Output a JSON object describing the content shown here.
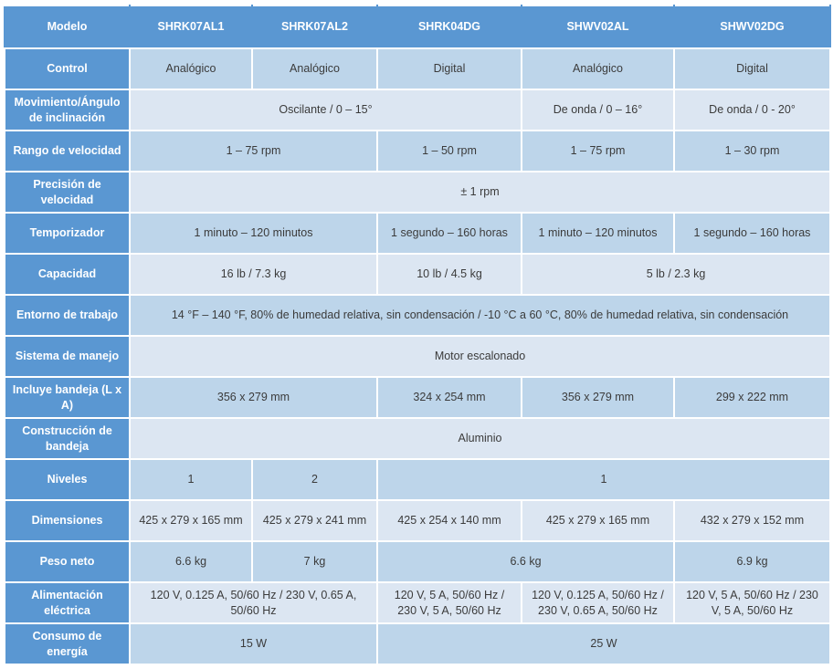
{
  "colors": {
    "header_bg": "#5a97d2",
    "row_shade_dark": "#bdd5ea",
    "row_shade_light": "#dce6f2",
    "gridline": "#ffffff",
    "header_text": "#ffffff",
    "body_text": "#3b3b3b"
  },
  "table": {
    "header": {
      "row_label": "Modelo",
      "columns": [
        "SHRK07AL1",
        "SHRK07AL2",
        "SHRK04DG",
        "SHWV02AL",
        "SHWV02DG"
      ]
    },
    "rows": [
      {
        "label": "Control",
        "shade": "dark",
        "cells": [
          {
            "text": "Analógico",
            "span": 1
          },
          {
            "text": "Analógico",
            "span": 1
          },
          {
            "text": "Digital",
            "span": 1
          },
          {
            "text": "Analógico",
            "span": 1
          },
          {
            "text": "Digital",
            "span": 1
          }
        ]
      },
      {
        "label": "Movimiento/Ángulo de inclinación",
        "shade": "light",
        "cells": [
          {
            "text": "Oscilante / 0 – 15°",
            "span": 3
          },
          {
            "text": "De onda / 0 – 16°",
            "span": 1
          },
          {
            "text": "De onda / 0 - 20°",
            "span": 1
          }
        ]
      },
      {
        "label": "Rango de velocidad",
        "shade": "dark",
        "cells": [
          {
            "text": "1 – 75 rpm",
            "span": 2
          },
          {
            "text": "1 – 50 rpm",
            "span": 1
          },
          {
            "text": "1 – 75 rpm",
            "span": 1
          },
          {
            "text": "1 – 30 rpm",
            "span": 1
          }
        ]
      },
      {
        "label": "Precisión de velocidad",
        "shade": "light",
        "cells": [
          {
            "text": "± 1 rpm",
            "span": 5
          }
        ]
      },
      {
        "label": "Temporizador",
        "shade": "dark",
        "cells": [
          {
            "text": "1 minuto – 120 minutos",
            "span": 2
          },
          {
            "text": "1 segundo – 160 horas",
            "span": 1
          },
          {
            "text": "1 minuto – 120 minutos",
            "span": 1
          },
          {
            "text": "1 segundo – 160 horas",
            "span": 1
          }
        ]
      },
      {
        "label": "Capacidad",
        "shade": "light",
        "cells": [
          {
            "text": "16 lb / 7.3 kg",
            "span": 2
          },
          {
            "text": "10 lb / 4.5 kg",
            "span": 1
          },
          {
            "text": "5 lb / 2.3 kg",
            "span": 2
          }
        ]
      },
      {
        "label": "Entorno de trabajo",
        "shade": "dark",
        "cells": [
          {
            "text": "14 °F – 140 °F, 80% de humedad relativa, sin condensación / -10 °C a 60 °C, 80% de humedad relativa, sin condensación",
            "span": 5
          }
        ]
      },
      {
        "label": "Sistema de manejo",
        "shade": "light",
        "cells": [
          {
            "text": "Motor escalonado",
            "span": 5
          }
        ]
      },
      {
        "label": "Incluye bandeja (L x A)",
        "shade": "dark",
        "cells": [
          {
            "text": "356 x 279 mm",
            "span": 2
          },
          {
            "text": "324 x 254 mm",
            "span": 1
          },
          {
            "text": "356 x 279 mm",
            "span": 1
          },
          {
            "text": "299 x 222 mm",
            "span": 1
          }
        ]
      },
      {
        "label": "Construcción de bandeja",
        "shade": "light",
        "cells": [
          {
            "text": "Aluminio",
            "span": 5
          }
        ]
      },
      {
        "label": "Niveles",
        "shade": "dark",
        "cells": [
          {
            "text": "1",
            "span": 1
          },
          {
            "text": "2",
            "span": 1
          },
          {
            "text": "1",
            "span": 3
          }
        ]
      },
      {
        "label": "Dimensiones",
        "shade": "light",
        "cells": [
          {
            "text": "425 x 279 x 165 mm",
            "span": 1
          },
          {
            "text": "425 x 279 x 241 mm",
            "span": 1
          },
          {
            "text": "425 x 254 x 140 mm",
            "span": 1
          },
          {
            "text": "425 x 279 x 165 mm",
            "span": 1
          },
          {
            "text": "432 x 279 x 152 mm",
            "span": 1
          }
        ]
      },
      {
        "label": "Peso neto",
        "shade": "dark",
        "cells": [
          {
            "text": "6.6 kg",
            "span": 1
          },
          {
            "text": "7 kg",
            "span": 1
          },
          {
            "text": "6.6 kg",
            "span": 2
          },
          {
            "text": "6.9 kg",
            "span": 1
          }
        ]
      },
      {
        "label": "Alimentación eléctrica",
        "shade": "light",
        "cells": [
          {
            "text": "120 V, 0.125 A, 50/60 Hz / 230 V, 0.65 A, 50/60 Hz",
            "span": 2
          },
          {
            "text": "120 V, 5 A, 50/60 Hz / 230 V, 5 A, 50/60 Hz",
            "span": 1
          },
          {
            "text": "120 V, 0.125 A, 50/60 Hz / 230 V, 0.65 A, 50/60 Hz",
            "span": 1
          },
          {
            "text": "120 V, 5 A, 50/60 Hz / 230 V, 5 A, 50/60 Hz",
            "span": 1
          }
        ]
      },
      {
        "label": "Consumo de energía",
        "shade": "dark",
        "cells": [
          {
            "text": "15 W",
            "span": 2
          },
          {
            "text": "25 W",
            "span": 3
          }
        ]
      }
    ]
  }
}
